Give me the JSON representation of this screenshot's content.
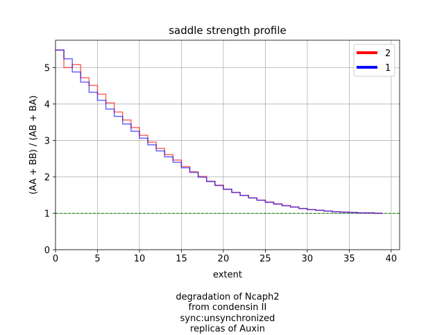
{
  "chart_data": {
    "type": "line",
    "title": "saddle strength profile",
    "xlabel": "extent",
    "ylabel": "(AA + BB) / (AB + BA)",
    "xlim": [
      0,
      41
    ],
    "ylim": [
      0,
      5.75
    ],
    "xticks": [
      0,
      5,
      10,
      15,
      20,
      25,
      30,
      35,
      40
    ],
    "yticks": [
      0,
      1,
      2,
      3,
      4,
      5
    ],
    "grid": true,
    "legend_position": "top-right",
    "step": "post",
    "reference_line": {
      "y": 1,
      "color": "#008000",
      "style": "dashed"
    },
    "x": [
      0,
      1,
      2,
      3,
      4,
      5,
      6,
      7,
      8,
      9,
      10,
      11,
      12,
      13,
      14,
      15,
      16,
      17,
      18,
      19,
      20,
      21,
      22,
      23,
      24,
      25,
      26,
      27,
      28,
      29,
      30,
      31,
      32,
      33,
      34,
      35,
      36,
      37,
      38,
      39
    ],
    "series": [
      {
        "name": "2",
        "color": "#ff0000",
        "values": [
          5.48,
          5.0,
          5.08,
          4.72,
          4.51,
          4.27,
          4.03,
          3.78,
          3.56,
          3.35,
          3.14,
          2.95,
          2.78,
          2.61,
          2.46,
          2.28,
          2.14,
          2.01,
          1.88,
          1.77,
          1.66,
          1.57,
          1.49,
          1.42,
          1.36,
          1.31,
          1.26,
          1.21,
          1.17,
          1.13,
          1.1,
          1.08,
          1.06,
          1.04,
          1.03,
          1.02,
          1.01,
          1.01,
          1.0,
          1.0
        ]
      },
      {
        "name": "1",
        "color": "#0000ff",
        "values": [
          5.48,
          5.24,
          4.88,
          4.6,
          4.32,
          4.1,
          3.86,
          3.66,
          3.45,
          3.25,
          3.06,
          2.88,
          2.71,
          2.55,
          2.4,
          2.25,
          2.12,
          1.99,
          1.87,
          1.76,
          1.66,
          1.57,
          1.49,
          1.42,
          1.36,
          1.3,
          1.25,
          1.21,
          1.17,
          1.13,
          1.1,
          1.08,
          1.06,
          1.04,
          1.03,
          1.02,
          1.01,
          1.01,
          1.0,
          1.0
        ]
      }
    ]
  },
  "caption": {
    "lines": [
      "degradation of Ncaph2",
      "from condensin II",
      "sync:unsynchronized",
      "replicas of Auxin"
    ]
  }
}
